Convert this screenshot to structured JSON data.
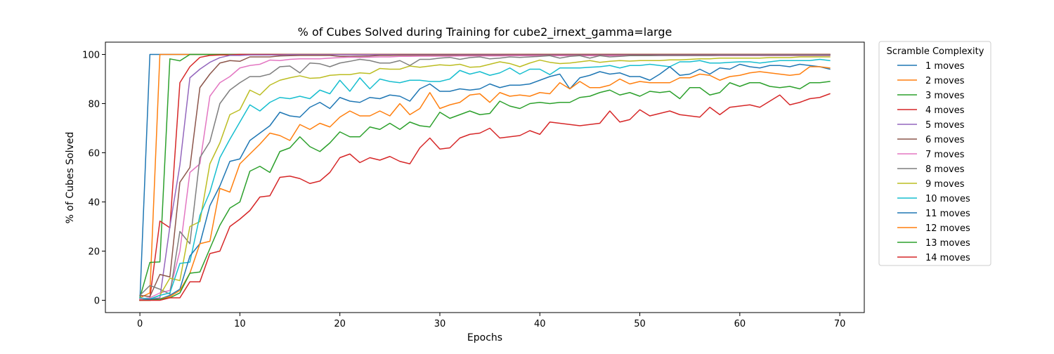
{
  "chart_data": {
    "type": "line",
    "title": "% of Cubes Solved during Training for cube2_irnext_gamma=large",
    "xlabel": "Epochs",
    "ylabel": "% of Cubes Solved",
    "xlim": [
      -3.45,
      72.45
    ],
    "ylim": [
      -5,
      105
    ],
    "xticks": [
      0,
      10,
      20,
      30,
      40,
      50,
      60,
      70
    ],
    "yticks": [
      0,
      20,
      40,
      60,
      80,
      100
    ],
    "grid": false,
    "legend": {
      "title": "Scramble Complexity",
      "placement": "outside-right-top"
    },
    "x": [
      0,
      1,
      2,
      3,
      4,
      5,
      6,
      7,
      8,
      9,
      10,
      11,
      12,
      13,
      14,
      15,
      16,
      17,
      18,
      19,
      20,
      21,
      22,
      23,
      24,
      25,
      26,
      27,
      28,
      29,
      30,
      31,
      32,
      33,
      34,
      35,
      36,
      37,
      38,
      39,
      40,
      41,
      42,
      43,
      44,
      45,
      46,
      47,
      48,
      49,
      50,
      51,
      52,
      53,
      54,
      55,
      56,
      57,
      58,
      59,
      60,
      61,
      62,
      63,
      64,
      65,
      66,
      67,
      68,
      69
    ],
    "series": [
      {
        "name": "1 moves",
        "color": "#1f77b4",
        "values": [
          0,
          100,
          100,
          100,
          100,
          100,
          100,
          100,
          100,
          100,
          100,
          100,
          100,
          100,
          100,
          100,
          100,
          100,
          100,
          100,
          100,
          100,
          100,
          100,
          100,
          100,
          100,
          100,
          100,
          100,
          100,
          100,
          100,
          100,
          100,
          100,
          100,
          100,
          100,
          100,
          100,
          100,
          100,
          100,
          100,
          100,
          100,
          100,
          100,
          100,
          100,
          100,
          100,
          100,
          100,
          100,
          100,
          100,
          100,
          100,
          100,
          100,
          100,
          100,
          100,
          100,
          100,
          100,
          100,
          100
        ]
      },
      {
        "name": "2 moves",
        "color": "#ff7f0e",
        "values": [
          1,
          3,
          100,
          100,
          100,
          100,
          100,
          100,
          100,
          100,
          100,
          100,
          100,
          100,
          100,
          100,
          100,
          100,
          100,
          100,
          100,
          100,
          100,
          100,
          100,
          100,
          100,
          100,
          100,
          100,
          100,
          100,
          100,
          100,
          100,
          100,
          100,
          100,
          100,
          100,
          100,
          100,
          100,
          100,
          100,
          100,
          100,
          100,
          100,
          100,
          100,
          100,
          100,
          100,
          100,
          100,
          100,
          100,
          100,
          100,
          100,
          100,
          100,
          100,
          100,
          100,
          100,
          100,
          100,
          100
        ]
      },
      {
        "name": "3 moves",
        "color": "#2ca02c",
        "values": [
          1,
          15.4,
          15.6,
          98.2,
          97.4,
          100,
          100,
          100,
          100,
          100,
          100,
          100,
          100,
          100,
          100,
          100,
          100,
          100,
          100,
          100,
          100,
          100,
          100,
          100,
          100,
          100,
          100,
          100,
          100,
          100,
          100,
          100,
          100,
          100,
          100,
          100,
          100,
          100,
          100,
          100,
          100,
          100,
          100,
          100,
          100,
          100,
          100,
          100,
          100,
          100,
          100,
          100,
          100,
          100,
          100,
          100,
          100,
          100,
          100,
          100,
          100,
          100,
          100,
          100,
          100,
          100,
          100,
          100,
          100,
          100
        ]
      },
      {
        "name": "4 moves",
        "color": "#d62728",
        "values": [
          0.5,
          1,
          32.2,
          29.5,
          88.5,
          95,
          98.8,
          99.6,
          99.8,
          99.8,
          100,
          100,
          100,
          100,
          100,
          100,
          100,
          100,
          100,
          100,
          100,
          100,
          100,
          100,
          100,
          100,
          100,
          100,
          100,
          100,
          100,
          100,
          100,
          100,
          100,
          100,
          100,
          100,
          100,
          100,
          100,
          100,
          100,
          100,
          100,
          100,
          100,
          100,
          100,
          100,
          100,
          100,
          100,
          100,
          100,
          100,
          100,
          100,
          100,
          100,
          100,
          100,
          100,
          100,
          100,
          100,
          100,
          100,
          100,
          100
        ]
      },
      {
        "name": "5 moves",
        "color": "#9467bd",
        "values": [
          0,
          0.5,
          1,
          30,
          55,
          90.5,
          94,
          96.8,
          98.7,
          99.6,
          99.6,
          99.8,
          99.8,
          99.8,
          99.8,
          99.9,
          99.9,
          99.9,
          99.9,
          99.9,
          99.9,
          99.9,
          99.9,
          99.9,
          99.9,
          99.9,
          99.9,
          99.9,
          99.9,
          99.9,
          99.9,
          99.9,
          99.9,
          99.9,
          99.9,
          99.9,
          99.9,
          99.9,
          99.9,
          99.9,
          99.9,
          99.9,
          99.9,
          99.9,
          99.9,
          99.9,
          99.9,
          99.9,
          99.9,
          99.9,
          99.9,
          99.9,
          99.9,
          99.9,
          99.9,
          99.9,
          99.9,
          99.9,
          99.9,
          99.9,
          99.9,
          99.9,
          99.9,
          99.9,
          99.9,
          99.9,
          99.9,
          99.9,
          99.9,
          99.9
        ]
      },
      {
        "name": "6 moves",
        "color": "#8c564b",
        "values": [
          2,
          1.5,
          10.5,
          9.5,
          48,
          54,
          86.5,
          92,
          96.5,
          97.5,
          97.2,
          99,
          99,
          99,
          99.4,
          99.5,
          99.6,
          99.6,
          99.6,
          99.6,
          99.2,
          99.2,
          99.3,
          99.4,
          99.6,
          99.6,
          99.7,
          99.7,
          99.7,
          99.7,
          99.7,
          99.7,
          99.7,
          99.7,
          99.7,
          99.7,
          99.7,
          99.8,
          99.8,
          99.8,
          99.8,
          99.8,
          99.8,
          99.8,
          99.8,
          99.8,
          99.8,
          99.8,
          99.8,
          99.8,
          99.8,
          99.8,
          99.8,
          99.8,
          99.8,
          99.8,
          99.8,
          99.8,
          99.8,
          99.8,
          99.8,
          99.8,
          99.8,
          99.8,
          99.8,
          99.8,
          99.8,
          99.8,
          99.8,
          99.8
        ]
      },
      {
        "name": "7 moves",
        "color": "#e377c2",
        "values": [
          0.5,
          1,
          3,
          4,
          20,
          52,
          55.5,
          83,
          88.5,
          91,
          94.5,
          95.5,
          96,
          97.7,
          97.5,
          98,
          98.2,
          98.2,
          98.2,
          98.5,
          98.7,
          98.9,
          98.8,
          98.9,
          99,
          99,
          99.2,
          99.2,
          99.3,
          99.3,
          99.3,
          99.3,
          99.4,
          99.4,
          99.4,
          99.4,
          99.4,
          99.5,
          99.5,
          99.5,
          99.5,
          99.5,
          99.5,
          99.5,
          99.5,
          99.5,
          99.5,
          99.5,
          99.5,
          99.5,
          99.5,
          99.5,
          99.5,
          99.5,
          99.5,
          99.5,
          99.5,
          99.5,
          99.5,
          99.5,
          99.5,
          99.5,
          99.5,
          99.5,
          99.5,
          99.5,
          99.5,
          99.5,
          99.5,
          99.5
        ]
      },
      {
        "name": "8 moves",
        "color": "#7f7f7f",
        "values": [
          2,
          6,
          4.5,
          2.5,
          28,
          23,
          58,
          64.5,
          80,
          85.5,
          88.5,
          91,
          91,
          92,
          95,
          95.3,
          92.5,
          96.5,
          96.2,
          95,
          96.5,
          97.2,
          98,
          97.5,
          96.5,
          96.5,
          97.5,
          95.5,
          98,
          98,
          98.5,
          98.8,
          98,
          98.7,
          99,
          98.2,
          98.5,
          99,
          98.8,
          99,
          99.2,
          99.5,
          98.5,
          99.2,
          99.5,
          98.5,
          99.5,
          99,
          99.2,
          99.5,
          99.5,
          99.5,
          99.6,
          99.6,
          99.6,
          99.6,
          99.6,
          99.6,
          99.7,
          99.7,
          99.7,
          99.7,
          99.7,
          99.7,
          99.7,
          99.7,
          99.7,
          99.7,
          99.7,
          99.7
        ]
      },
      {
        "name": "9 moves",
        "color": "#bcbd22",
        "values": [
          0,
          0.5,
          2,
          9,
          8,
          30,
          32,
          55.5,
          64,
          75.5,
          77.5,
          85.5,
          83.5,
          87.5,
          89.5,
          90.5,
          91.3,
          90.3,
          90.5,
          91.5,
          91.8,
          91.8,
          92.5,
          92.2,
          94.3,
          94,
          94,
          95.3,
          94.8,
          95.3,
          95.8,
          95.5,
          96,
          94.8,
          95,
          96,
          97,
          96.3,
          95,
          96.5,
          97.7,
          96.8,
          96.3,
          96.5,
          97,
          97.5,
          96.8,
          97.2,
          97.5,
          97.3,
          97.5,
          97.5,
          97.5,
          97.8,
          97.8,
          98,
          98.2,
          98.2,
          98.5,
          98.5,
          98.5,
          98.5,
          98.5,
          98.7,
          98.7,
          98.7,
          99,
          99,
          99,
          99
        ]
      },
      {
        "name": "10 moves",
        "color": "#17becf",
        "values": [
          1,
          0.5,
          2,
          3,
          15,
          15.5,
          34.5,
          44,
          58,
          65.5,
          72.5,
          79.5,
          77,
          80.5,
          82.5,
          82,
          83,
          82,
          85.5,
          84,
          89.5,
          85,
          90.5,
          86,
          90,
          89,
          88.5,
          89.5,
          89.5,
          89,
          89,
          90,
          93.5,
          92,
          93,
          91.5,
          92.5,
          94.5,
          92,
          94,
          94,
          91.8,
          94.5,
          94.5,
          94.5,
          94.8,
          95,
          95.5,
          94.5,
          95.5,
          95.5,
          96,
          95.5,
          95,
          97,
          97,
          97.5,
          96.5,
          96.5,
          96.8,
          97,
          97,
          96.5,
          97,
          97.5,
          97.5,
          97.5,
          97.5,
          98,
          97.5
        ]
      },
      {
        "name": "11 moves",
        "color": "#1f77b4",
        "values": [
          0,
          0.5,
          0.5,
          2,
          4.5,
          18,
          23,
          38.5,
          46.5,
          56.5,
          57.5,
          65,
          68,
          71,
          76.5,
          75,
          74.5,
          78.5,
          80.5,
          78,
          82.5,
          81,
          80.5,
          82.5,
          82,
          83.5,
          83,
          81,
          86,
          88,
          85,
          85,
          86,
          85.5,
          86,
          88,
          86.5,
          87.5,
          87.5,
          88,
          89.5,
          91,
          92,
          86,
          90.5,
          91.5,
          93,
          92,
          92.5,
          91,
          91,
          89.5,
          92,
          95,
          91.5,
          92,
          94,
          92,
          94.5,
          94,
          96,
          95,
          94.5,
          95.5,
          95.5,
          95,
          96,
          95.5,
          95,
          94
        ]
      },
      {
        "name": "12 moves",
        "color": "#ff7f0e",
        "values": [
          0,
          0,
          0.5,
          1.5,
          4,
          11,
          23,
          24,
          45.5,
          44,
          55.5,
          59.5,
          63.5,
          68,
          67,
          65,
          71.5,
          69.5,
          72,
          70.5,
          74.5,
          77,
          75,
          75,
          77,
          75,
          80,
          75.5,
          78,
          84.5,
          78,
          79.5,
          80.5,
          83.5,
          84,
          80.5,
          84.5,
          83,
          83.5,
          83,
          84.5,
          84,
          88.5,
          86,
          89,
          86.5,
          86.5,
          87.5,
          90,
          88,
          89,
          88.5,
          88.5,
          88.5,
          90.5,
          90.5,
          92,
          91.5,
          89.5,
          91,
          91.5,
          92.5,
          93,
          92.5,
          92,
          91.5,
          92,
          95,
          95,
          94.5
        ]
      },
      {
        "name": "13 moves",
        "color": "#2ca02c",
        "values": [
          0,
          0,
          0.5,
          1,
          3,
          11,
          11.5,
          21,
          30.5,
          37.5,
          40,
          52.5,
          54.5,
          52,
          60.5,
          62,
          66.5,
          62.5,
          60.5,
          64,
          68.5,
          66.5,
          66.5,
          70.5,
          69.5,
          72,
          69.5,
          72.5,
          71,
          70.5,
          76.5,
          74,
          75.5,
          77,
          75.5,
          76,
          81,
          79,
          78,
          80,
          80.5,
          80,
          80.5,
          80.5,
          82.5,
          83,
          84.5,
          85.5,
          83.5,
          84.5,
          83,
          85,
          84.5,
          85,
          82,
          86.5,
          86.5,
          83.5,
          84.5,
          88.5,
          87,
          88.5,
          88.5,
          87,
          86.5,
          87,
          86,
          88.5,
          88.5,
          89
        ]
      },
      {
        "name": "14 moves",
        "color": "#d62728",
        "values": [
          0,
          0,
          0,
          1,
          1,
          7.5,
          7.5,
          19,
          20,
          30,
          33,
          36.5,
          42,
          42.5,
          50,
          50.5,
          49.5,
          47.5,
          48.5,
          52,
          58,
          59.5,
          56,
          58,
          57,
          58.5,
          56.5,
          55.5,
          62,
          66,
          61.5,
          62,
          66,
          67.5,
          68,
          70,
          66,
          66.5,
          67,
          69,
          67.5,
          72.5,
          72,
          71.5,
          71,
          71.5,
          72,
          77,
          72.5,
          73.5,
          77.5,
          75,
          76,
          77,
          75.5,
          75,
          74.5,
          78.5,
          75.5,
          78.5,
          79,
          79.5,
          78.5,
          81,
          83.5,
          79.5,
          80.5,
          82,
          82.5,
          84
        ]
      }
    ]
  }
}
